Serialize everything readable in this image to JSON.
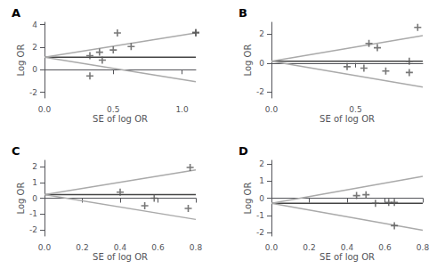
{
  "chart_data": [
    {
      "type": "scatter",
      "title": "A",
      "xlabel": "SE of log OR",
      "ylabel": "Log OR",
      "xlim": [
        0,
        1.1
      ],
      "ylim": [
        -2.5,
        4.2
      ],
      "xticks": [
        {
          "value": 0,
          "label": "0.0"
        },
        {
          "value": 0.5,
          "label": "0.5"
        },
        {
          "value": 1.0,
          "label": "1.0"
        }
      ],
      "yticks": [
        -2,
        0,
        2,
        4
      ],
      "grid": false,
      "series": [
        {
          "type": "scatter",
          "marker": "plus",
          "color": "#555555",
          "x": [
            0.33,
            0.4,
            0.42,
            0.5,
            0.53,
            0.63,
            1.1,
            0.33,
            1.1
          ],
          "values": [
            1.25,
            1.55,
            0.85,
            1.75,
            3.25,
            2.05,
            3.25,
            -0.55,
            3.3
          ]
        },
        {
          "type": "line",
          "color": "#444444",
          "x": [
            0,
            1.1
          ],
          "values": [
            1.1,
            1.1
          ]
        },
        {
          "type": "line",
          "color": "#aaaaaa",
          "x": [
            0,
            1.1
          ],
          "values": [
            1.1,
            3.256
          ]
        },
        {
          "type": "line",
          "color": "#aaaaaa",
          "x": [
            0,
            1.1
          ],
          "values": [
            1.1,
            -1.056
          ]
        }
      ]
    },
    {
      "type": "scatter",
      "title": "B",
      "xlabel": "SE of log OR",
      "ylabel": "Log OR",
      "xlim": [
        0,
        0.9
      ],
      "ylim": [
        -2.4,
        2.8
      ],
      "xticks": [
        {
          "value": 0,
          "label": "0.0"
        },
        {
          "value": 0.5,
          "label": "0.5"
        }
      ],
      "yticks": [
        -2,
        0,
        2
      ],
      "grid": false,
      "series": [
        {
          "type": "scatter",
          "marker": "plus",
          "color": "#555555",
          "x": [
            0.45,
            0.55,
            0.58,
            0.63,
            0.68,
            0.82,
            0.87,
            0.82
          ],
          "values": [
            -0.25,
            -0.35,
            1.35,
            1.05,
            -0.55,
            -0.65,
            2.45,
            0.12
          ]
        },
        {
          "type": "line",
          "color": "#444444",
          "x": [
            0,
            0.9
          ],
          "values": [
            0.12,
            0.12
          ]
        },
        {
          "type": "line",
          "color": "#aaaaaa",
          "x": [
            0,
            0.9
          ],
          "values": [
            0.12,
            1.884
          ]
        },
        {
          "type": "line",
          "color": "#aaaaaa",
          "x": [
            0,
            0.9
          ],
          "values": [
            0.12,
            -1.644
          ]
        }
      ]
    },
    {
      "type": "scatter",
      "title": "C",
      "xlabel": "SE of log OR",
      "ylabel": "Log OR",
      "xlim": [
        0,
        0.8
      ],
      "ylim": [
        -2.4,
        2.4
      ],
      "xticks": [
        {
          "value": 0,
          "label": "0.0"
        },
        {
          "value": 0.2,
          "label": "0.2"
        },
        {
          "value": 0.4,
          "label": "0.4"
        },
        {
          "value": 0.6,
          "label": "0.6"
        },
        {
          "value": 0.8,
          "label": "0.8"
        }
      ],
      "yticks": [
        -2,
        -1,
        0,
        1,
        2
      ],
      "grid": false,
      "series": [
        {
          "type": "scatter",
          "marker": "plus",
          "color": "#555555",
          "x": [
            0.4,
            0.53,
            0.58,
            0.76,
            0.77
          ],
          "values": [
            0.38,
            -0.48,
            0.0,
            -0.65,
            1.95
          ]
        },
        {
          "type": "line",
          "color": "#444444",
          "x": [
            0,
            0.8
          ],
          "values": [
            0.22,
            0.22
          ]
        },
        {
          "type": "line",
          "color": "#aaaaaa",
          "x": [
            0,
            0.8
          ],
          "values": [
            0.22,
            1.788
          ]
        },
        {
          "type": "line",
          "color": "#aaaaaa",
          "x": [
            0,
            0.8
          ],
          "values": [
            0.22,
            -1.348
          ]
        }
      ]
    },
    {
      "type": "scatter",
      "title": "D",
      "xlabel": "SE of log OR",
      "ylabel": "Log OR",
      "xlim": [
        0,
        0.8
      ],
      "ylim": [
        -2.2,
        2.2
      ],
      "xticks": [
        {
          "value": 0,
          "label": "0.0"
        },
        {
          "value": 0.2,
          "label": "0.2"
        },
        {
          "value": 0.4,
          "label": "0.4"
        },
        {
          "value": 0.6,
          "label": "0.6"
        },
        {
          "value": 0.8,
          "label": "0.8"
        }
      ],
      "yticks": [
        -2,
        -1,
        0,
        1,
        2
      ],
      "grid": false,
      "series": [
        {
          "type": "scatter",
          "marker": "plus",
          "color": "#555555",
          "x": [
            0.45,
            0.5,
            0.55,
            0.62,
            0.65,
            0.65
          ],
          "values": [
            0.15,
            0.2,
            -0.3,
            -0.25,
            -1.6,
            -0.25
          ]
        },
        {
          "type": "line",
          "color": "#444444",
          "x": [
            0,
            0.8
          ],
          "values": [
            -0.3,
            -0.3
          ]
        },
        {
          "type": "line",
          "color": "#aaaaaa",
          "x": [
            0,
            0.8
          ],
          "values": [
            -0.3,
            1.268
          ]
        },
        {
          "type": "line",
          "color": "#aaaaaa",
          "x": [
            0,
            0.8
          ],
          "values": [
            -0.3,
            -1.868
          ]
        }
      ]
    }
  ]
}
